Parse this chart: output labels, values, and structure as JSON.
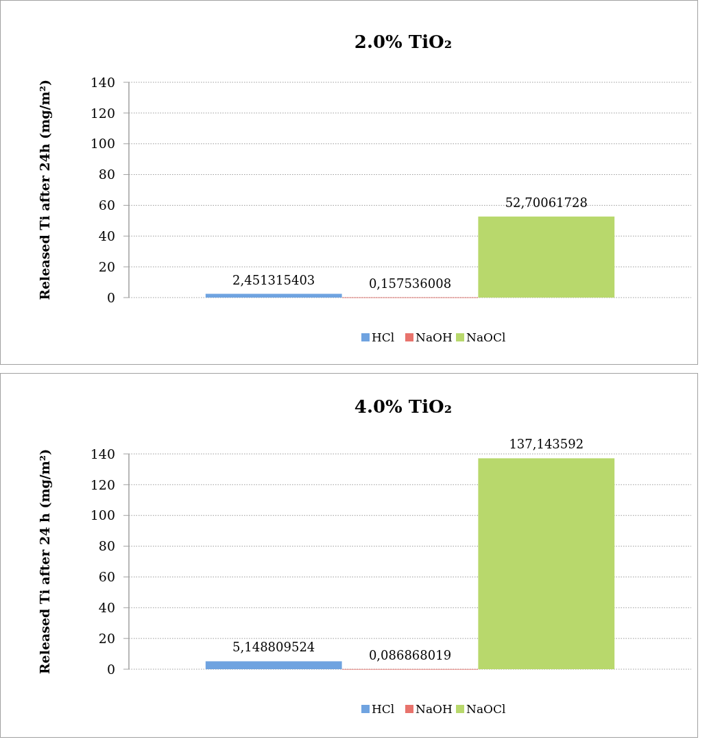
{
  "chart_data": [
    {
      "type": "bar",
      "title": "2.0% TiO₂",
      "ylabel": "Released Ti after 24h (mg/m²)",
      "categories": [
        null
      ],
      "ylim": [
        0,
        140
      ],
      "yticks": [
        0,
        20,
        40,
        60,
        80,
        100,
        120,
        140
      ],
      "grid": "y",
      "legend": "bottom",
      "series": [
        {
          "name": "HCl",
          "color": "#6fa3e0",
          "values": [
            2.451315403
          ],
          "value_labels": [
            "2,451315403"
          ]
        },
        {
          "name": "NaOH",
          "color": "#e8736c",
          "values": [
            0.157536008
          ],
          "value_labels": [
            "0,157536008"
          ]
        },
        {
          "name": "NaOCl",
          "color": "#b8d86c",
          "values": [
            52.70061728
          ],
          "value_labels": [
            "52,70061728"
          ]
        }
      ]
    },
    {
      "type": "bar",
      "title": "4.0% TiO₂",
      "ylabel": "Released Ti  after 24 h (mg/m²)",
      "categories": [
        null
      ],
      "ylim": [
        0,
        140
      ],
      "yticks": [
        0,
        20,
        40,
        60,
        80,
        100,
        120,
        140
      ],
      "grid": "y",
      "legend": "bottom",
      "series": [
        {
          "name": "HCl",
          "color": "#6fa3e0",
          "values": [
            5.148809524
          ],
          "value_labels": [
            "5,148809524"
          ]
        },
        {
          "name": "NaOH",
          "color": "#e8736c",
          "values": [
            0.086868019
          ],
          "value_labels": [
            "0,086868019"
          ]
        },
        {
          "name": "NaOCl",
          "color": "#b8d86c",
          "values": [
            137.143592
          ],
          "value_labels": [
            "137,143592"
          ]
        }
      ]
    }
  ]
}
